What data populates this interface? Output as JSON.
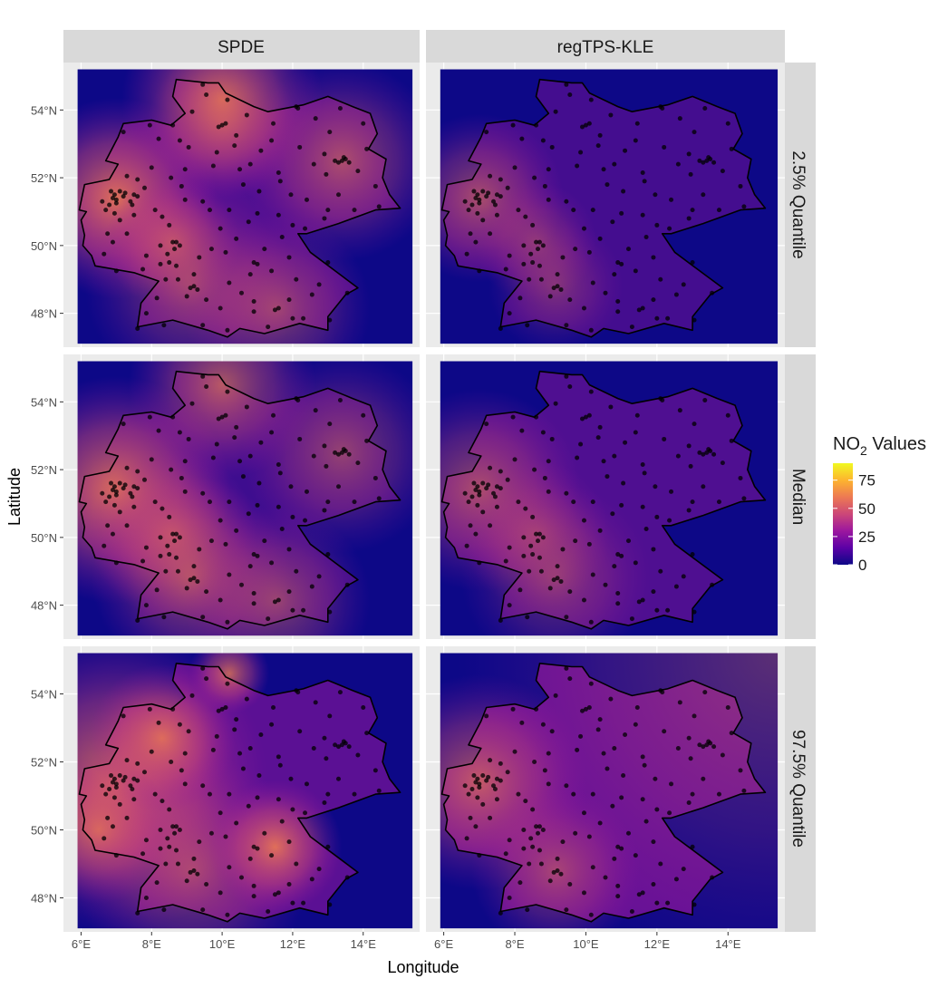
{
  "axes": {
    "x_title": "Longitude",
    "y_title": "Latitude",
    "x_ticks": [
      {
        "value": 6,
        "label": "6°E"
      },
      {
        "value": 8,
        "label": "8°E"
      },
      {
        "value": 10,
        "label": "10°E"
      },
      {
        "value": 12,
        "label": "12°E"
      },
      {
        "value": 14,
        "label": "14°E"
      }
    ],
    "y_ticks": [
      {
        "value": 48,
        "label": "48°N"
      },
      {
        "value": 50,
        "label": "50°N"
      },
      {
        "value": 52,
        "label": "52°N"
      },
      {
        "value": 54,
        "label": "54°N"
      }
    ],
    "xlim": [
      5.5,
      15.6
    ],
    "ylim": [
      47.0,
      55.4
    ]
  },
  "facets": {
    "columns": [
      "SPDE",
      "regTPS-KLE"
    ],
    "rows": [
      "2.5% Quantile",
      "Median",
      "97.5% Quantile"
    ]
  },
  "legend": {
    "title_main": "NO",
    "title_sub": "2",
    "title_rest": " Values",
    "breaks": [
      {
        "value": 75,
        "label": "75"
      },
      {
        "value": 50,
        "label": "50"
      },
      {
        "value": 25,
        "label": "25"
      },
      {
        "value": 0,
        "label": "0"
      }
    ],
    "range": [
      0,
      90
    ],
    "colors": [
      "#0d0887",
      "#5c01a6",
      "#9c179e",
      "#cc4778",
      "#ed7953",
      "#fdb42f",
      "#f0f921"
    ]
  },
  "map_data": {
    "type": "raster",
    "raster_extent": {
      "lon": [
        5.9,
        15.4
      ],
      "lat": [
        47.1,
        55.2
      ]
    },
    "germany_outline": [
      [
        8.7,
        54.9
      ],
      [
        9.6,
        54.8
      ],
      [
        9.9,
        54.8
      ],
      [
        10.1,
        54.5
      ],
      [
        10.9,
        54.1
      ],
      [
        11.3,
        53.95
      ],
      [
        12.3,
        54.15
      ],
      [
        13.0,
        54.4
      ],
      [
        13.7,
        54.1
      ],
      [
        14.2,
        53.9
      ],
      [
        14.4,
        53.3
      ],
      [
        14.15,
        52.85
      ],
      [
        14.65,
        52.55
      ],
      [
        14.55,
        52.0
      ],
      [
        14.75,
        51.5
      ],
      [
        15.05,
        51.1
      ],
      [
        14.35,
        51.05
      ],
      [
        13.3,
        50.65
      ],
      [
        12.4,
        50.35
      ],
      [
        12.15,
        50.35
      ],
      [
        12.5,
        49.8
      ],
      [
        13.4,
        49.1
      ],
      [
        13.85,
        48.75
      ],
      [
        13.5,
        48.55
      ],
      [
        13.0,
        47.9
      ],
      [
        13.0,
        47.5
      ],
      [
        12.2,
        47.7
      ],
      [
        11.2,
        47.4
      ],
      [
        10.5,
        47.55
      ],
      [
        10.15,
        47.3
      ],
      [
        9.6,
        47.5
      ],
      [
        8.6,
        47.8
      ],
      [
        7.6,
        47.6
      ],
      [
        7.7,
        48.3
      ],
      [
        8.2,
        48.95
      ],
      [
        7.5,
        49.2
      ],
      [
        6.4,
        49.4
      ],
      [
        6.3,
        49.7
      ],
      [
        6.05,
        50.0
      ],
      [
        6.1,
        50.3
      ],
      [
        6.0,
        50.75
      ],
      [
        6.15,
        51.0
      ],
      [
        5.95,
        51.05
      ],
      [
        6.1,
        51.8
      ],
      [
        6.8,
        51.95
      ],
      [
        7.05,
        52.4
      ],
      [
        6.7,
        52.5
      ],
      [
        7.05,
        53.2
      ],
      [
        7.2,
        53.6
      ],
      [
        8.0,
        53.7
      ],
      [
        8.55,
        53.55
      ],
      [
        8.95,
        53.9
      ],
      [
        8.6,
        54.4
      ],
      [
        8.7,
        54.9
      ]
    ],
    "stations": [
      [
        7.2,
        51.45
      ],
      [
        6.9,
        51.4
      ],
      [
        7.0,
        51.25
      ],
      [
        6.8,
        51.2
      ],
      [
        7.5,
        51.5
      ],
      [
        7.4,
        51.3
      ],
      [
        6.7,
        51.05
      ],
      [
        7.1,
        51.6
      ],
      [
        6.95,
        51.5
      ],
      [
        7.25,
        51.55
      ],
      [
        6.85,
        51.6
      ],
      [
        7.6,
        51.45
      ],
      [
        6.95,
        50.95
      ],
      [
        7.1,
        50.75
      ],
      [
        6.6,
        51.3
      ],
      [
        7.45,
        51.2
      ],
      [
        7.0,
        51.35
      ],
      [
        8.4,
        49.0
      ],
      [
        8.7,
        49.4
      ],
      [
        8.5,
        49.5
      ],
      [
        9.2,
        48.8
      ],
      [
        9.1,
        48.75
      ],
      [
        8.6,
        50.1
      ],
      [
        8.7,
        50.1
      ],
      [
        8.25,
        50.0
      ],
      [
        8.65,
        49.9
      ],
      [
        8.8,
        50.0
      ],
      [
        9.0,
        48.5
      ],
      [
        9.3,
        48.7
      ],
      [
        11.6,
        48.15
      ],
      [
        11.5,
        48.1
      ],
      [
        11.0,
        49.45
      ],
      [
        10.9,
        49.5
      ],
      [
        12.1,
        49.0
      ],
      [
        10.9,
        48.35
      ],
      [
        13.4,
        52.5
      ],
      [
        13.3,
        52.45
      ],
      [
        13.5,
        52.55
      ],
      [
        13.2,
        52.5
      ],
      [
        13.6,
        52.45
      ],
      [
        13.45,
        52.6
      ],
      [
        12.4,
        51.35
      ],
      [
        13.75,
        51.05
      ],
      [
        11.6,
        50.9
      ],
      [
        11.0,
        50.95
      ],
      [
        12.9,
        50.8
      ],
      [
        11.95,
        51.5
      ],
      [
        12.1,
        54.1
      ],
      [
        12.15,
        54.05
      ],
      [
        10.0,
        53.55
      ],
      [
        10.1,
        53.6
      ],
      [
        9.9,
        53.5
      ],
      [
        8.8,
        53.1
      ],
      [
        8.6,
        53.55
      ],
      [
        9.75,
        52.35
      ],
      [
        10.5,
        52.25
      ],
      [
        11.6,
        52.15
      ],
      [
        8.0,
        52.3
      ],
      [
        7.6,
        51.95
      ],
      [
        8.55,
        52.0
      ],
      [
        9.45,
        51.3
      ],
      [
        10.2,
        51.05
      ],
      [
        7.0,
        49.25
      ],
      [
        6.65,
        49.75
      ],
      [
        8.25,
        49.45
      ],
      [
        9.2,
        49.15
      ],
      [
        10.9,
        48.05
      ],
      [
        7.85,
        48.0
      ],
      [
        7.6,
        47.55
      ],
      [
        9.45,
        47.65
      ],
      [
        10.15,
        47.5
      ],
      [
        12.0,
        47.85
      ],
      [
        13.05,
        47.8
      ],
      [
        12.55,
        48.55
      ],
      [
        11.4,
        49.25
      ],
      [
        10.1,
        49.8
      ],
      [
        9.95,
        50.5
      ],
      [
        8.95,
        51.35
      ],
      [
        10.4,
        53.25
      ],
      [
        11.45,
        53.6
      ],
      [
        13.05,
        53.35
      ],
      [
        12.6,
        52.4
      ],
      [
        14.35,
        51.75
      ],
      [
        14.45,
        51.15
      ],
      [
        9.55,
        54.45
      ],
      [
        9.45,
        54.75
      ],
      [
        10.15,
        54.3
      ],
      [
        10.7,
        53.85
      ],
      [
        7.95,
        53.55
      ],
      [
        8.2,
        53.15
      ],
      [
        7.2,
        53.35
      ],
      [
        11.65,
        51.9
      ],
      [
        13.0,
        51.05
      ],
      [
        12.35,
        50.5
      ],
      [
        13.0,
        49.5
      ],
      [
        9.05,
        52.9
      ],
      [
        10.8,
        52.4
      ],
      [
        11.05,
        51.6
      ],
      [
        8.1,
        51.05
      ],
      [
        8.5,
        50.6
      ],
      [
        9.7,
        49.9
      ],
      [
        8.75,
        49.0
      ],
      [
        10.55,
        48.6
      ],
      [
        11.9,
        48.4
      ],
      [
        12.75,
        48.85
      ],
      [
        7.3,
        50.35
      ],
      [
        8.3,
        50.85
      ],
      [
        9.85,
        52.75
      ],
      [
        12.95,
        52.1
      ],
      [
        13.85,
        52.2
      ],
      [
        14.1,
        52.85
      ],
      [
        11.1,
        52.8
      ],
      [
        8.15,
        48.45
      ],
      [
        9.55,
        48.4
      ],
      [
        10.2,
        48.9
      ],
      [
        11.2,
        49.9
      ],
      [
        10.4,
        50.2
      ],
      [
        12.0,
        50.6
      ],
      [
        13.3,
        51.5
      ],
      [
        12.2,
        52.9
      ],
      [
        11.4,
        53.1
      ],
      [
        9.15,
        53.95
      ],
      [
        7.8,
        51.7
      ],
      [
        8.95,
        52.25
      ],
      [
        7.3,
        52.05
      ],
      [
        6.75,
        50.35
      ],
      [
        7.85,
        49.7
      ],
      [
        9.35,
        49.65
      ],
      [
        10.8,
        49.15
      ],
      [
        11.9,
        49.65
      ],
      [
        13.55,
        48.6
      ],
      [
        12.3,
        47.85
      ],
      [
        11.3,
        47.6
      ],
      [
        9.95,
        48.15
      ],
      [
        8.35,
        47.65
      ],
      [
        7.75,
        49.3
      ],
      [
        6.9,
        50.1
      ],
      [
        7.5,
        50.9
      ],
      [
        8.85,
        51.75
      ],
      [
        10.6,
        51.8
      ],
      [
        12.65,
        53.75
      ],
      [
        13.35,
        54.05
      ],
      [
        14.0,
        53.6
      ],
      [
        10.75,
        50.7
      ],
      [
        9.65,
        51.05
      ],
      [
        8.45,
        49.75
      ],
      [
        11.7,
        50.25
      ],
      [
        12.9,
        52.7
      ],
      [
        10.35,
        52.95
      ]
    ],
    "panels": [
      {
        "hotspots": [
          [
            7.0,
            51.4,
            0.3,
            0.9
          ],
          [
            8.6,
            50.1,
            0.2,
            0.6
          ],
          [
            9.15,
            48.8,
            0.32,
            0.5
          ],
          [
            11.55,
            48.15,
            0.28,
            0.5
          ],
          [
            13.4,
            52.5,
            0.3,
            0.6
          ],
          [
            10.0,
            53.6,
            0.22,
            0.5
          ],
          [
            10.0,
            54.3,
            0.3,
            0.8
          ]
        ],
        "base": 0.22
      },
      {
        "hotspots": [
          [
            7.0,
            51.4,
            0.25,
            0.6
          ],
          [
            8.6,
            50.1,
            0.18,
            0.4
          ],
          [
            9.15,
            48.8,
            0.2,
            0.35
          ]
        ],
        "base": 0.14
      },
      {
        "hotspots": [
          [
            7.0,
            51.4,
            0.34,
            0.9
          ],
          [
            8.6,
            50.1,
            0.25,
            0.6
          ],
          [
            9.15,
            48.8,
            0.3,
            0.6
          ],
          [
            11.55,
            48.15,
            0.28,
            0.5
          ],
          [
            13.4,
            52.5,
            0.3,
            0.5
          ],
          [
            10.0,
            54.5,
            0.28,
            0.7
          ]
        ],
        "base": 0.1
      },
      {
        "hotspots": [
          [
            7.0,
            51.4,
            0.3,
            0.6
          ],
          [
            8.6,
            50.1,
            0.22,
            0.4
          ],
          [
            9.15,
            48.8,
            0.28,
            0.4
          ]
        ],
        "base": 0.22
      },
      {
        "hotspots": [
          [
            7.0,
            51.4,
            0.45,
            0.85
          ],
          [
            9.15,
            48.8,
            0.35,
            0.5
          ],
          [
            11.5,
            49.5,
            0.2,
            0.9
          ],
          [
            8.3,
            52.7,
            0.22,
            0.8
          ],
          [
            10.2,
            54.6,
            0.12,
            0.8
          ],
          [
            6.5,
            50.0,
            0.22,
            0.7
          ]
        ],
        "base": 0.3
      },
      {
        "hotspots": [
          [
            15.4,
            55.2,
            0.95,
            0.35
          ],
          [
            7.0,
            51.4,
            0.32,
            0.7
          ],
          [
            9.15,
            48.8,
            0.25,
            0.5
          ]
        ],
        "base": 0.38
      }
    ]
  }
}
